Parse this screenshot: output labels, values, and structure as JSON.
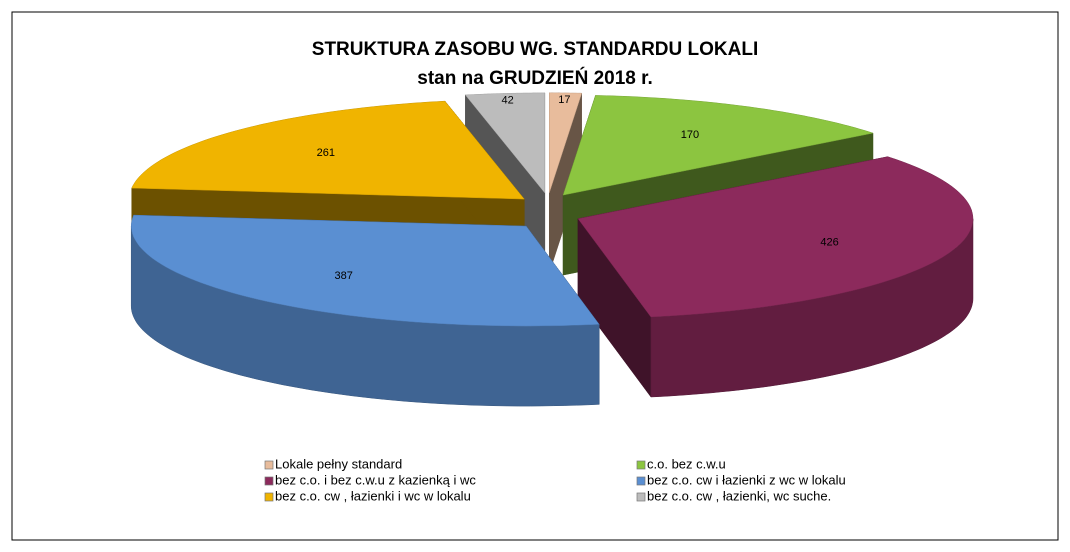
{
  "chart_data": {
    "type": "pie3d",
    "title": "STRUKTURA ZASOBU  WG. STANDARDU  LOKALI",
    "subtitle": "stan na GRUDZIEŃ 2018 r.",
    "categories": [
      "Lokale pełny standard",
      "c.o. bez c.w.u",
      "bez c.o. i bez c.w.u z kazienką i wc",
      "bez c.o. cw i  łazienki z wc w lokalu",
      "bez c.o. cw ,  łazienki i wc w lokalu",
      "bez c.o. cw ,  łazienki, wc suche."
    ],
    "values": [
      17,
      170,
      426,
      387,
      261,
      42
    ],
    "colors": [
      "#e8bc9c",
      "#8cc540",
      "#8c2a5c",
      "#5a8fd2",
      "#f0b400",
      "#bcbcbc"
    ],
    "legend": "bottom"
  }
}
